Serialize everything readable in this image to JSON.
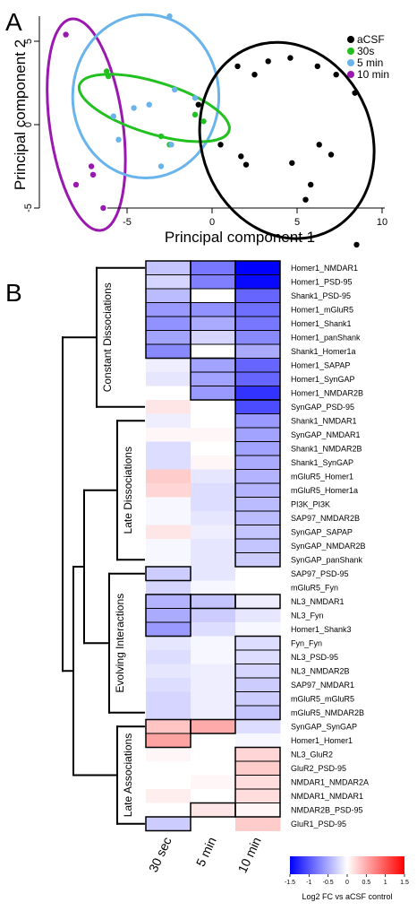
{
  "panel_a": {
    "letter": "A",
    "chart_data": {
      "type": "scatter",
      "xlabel": "Principal component 1",
      "ylabel": "Principal component 2",
      "xticks": [
        "-5",
        "0",
        "5",
        "10"
      ],
      "yticks": [
        "-5",
        "0",
        "5"
      ],
      "xlim": [
        -9,
        11
      ],
      "ylim": [
        -6.5,
        6.5
      ],
      "legend_position": "top-right",
      "series": [
        {
          "name": "aCSF",
          "color": "#000000",
          "points": [
            [
              1.5,
              3.5
            ],
            [
              2.5,
              3.0
            ],
            [
              3.3,
              3.8
            ],
            [
              4.6,
              4.0
            ],
            [
              6.2,
              3.5
            ],
            [
              7.3,
              3.0
            ],
            [
              8.4,
              1.9
            ],
            [
              -0.8,
              1.2
            ],
            [
              0.5,
              -1.2
            ],
            [
              1.7,
              -1.9
            ],
            [
              2.0,
              -2.4
            ],
            [
              4.7,
              -2.3
            ],
            [
              5.8,
              -3.6
            ],
            [
              6.3,
              -1.2
            ],
            [
              7.0,
              -1.8
            ],
            [
              5.5,
              -4.5
            ],
            [
              8.5,
              -7.2
            ]
          ]
        },
        {
          "name": "30s",
          "color": "#22c020",
          "points": [
            [
              -6.2,
              3.2
            ],
            [
              -6.1,
              2.9
            ],
            [
              -3.0,
              -0.7
            ],
            [
              -2.5,
              -1.2
            ],
            [
              -1.0,
              0.6
            ],
            [
              -0.5,
              0.2
            ]
          ]
        },
        {
          "name": "5 min",
          "color": "#6ab4ec",
          "points": [
            [
              -2.5,
              6.5
            ],
            [
              -5.8,
              0.5
            ],
            [
              -4.6,
              1.0
            ],
            [
              -3.7,
              1.2
            ],
            [
              -2.2,
              2.1
            ],
            [
              -5.5,
              -0.9
            ],
            [
              -2.4,
              -1.2
            ],
            [
              -3.0,
              -2.5
            ],
            [
              -1.0,
              1.6
            ]
          ]
        },
        {
          "name": "10 min",
          "color": "#9b18b0",
          "points": [
            [
              -8.6,
              5.4
            ],
            [
              -7.1,
              -2.5
            ],
            [
              -8.0,
              -3.6
            ],
            [
              -7.0,
              -3.0
            ],
            [
              -6.4,
              -5.0
            ]
          ]
        }
      ]
    }
  },
  "panel_b": {
    "letter": "B",
    "chart_data": {
      "type": "heatmap",
      "columns": [
        "30 sec",
        "5 min",
        "10 min"
      ],
      "rows": [
        "Homer1_NMDAR1",
        "Homer1_PSD-95",
        "Shank1_PSD-95",
        "Homer1_mGluR5",
        "Homer1_Shank1",
        "Homer1_panShank",
        "Shank1_Homer1a",
        "Homer1_SAPAP",
        "Homer1_SynGAP",
        "Homer1_NMDAR2B",
        "SynGAP_PSD-95",
        "Shank1_NMDAR1",
        "SynGAP_NMDAR1",
        "Shank1_NMDAR2B",
        "Shank1_SynGAP",
        "mGluR5_Homer1",
        "mGluR5_Homer1a",
        "PI3K_PI3K",
        "SAP97_NMDAR2B",
        "SynGAP_SAPAP",
        "SynGAP_NMDAR2B",
        "SynGAP_panShank",
        "SAP97_PSD-95",
        "mGluR5_Fyn",
        "NL3_NMDAR1",
        "NL3_Fyn",
        "Homer1_Shank3",
        "Fyn_Fyn",
        "NL3_PSD-95",
        "NL3_NMDAR2B",
        "SAP97_NMDAR1",
        "mGluR5_mGluR5",
        "mGluR5_NMDAR2B",
        "SynGAP_SynGAP",
        "Homer1_Homer1",
        "NL3_GluR2",
        "GluR2_PSD-95",
        "NMDAR1_NMDAR2A",
        "NMDAR1_NMDAR1",
        "NMDAR2B_PSD-95",
        "GluR1_PSD-95"
      ],
      "values": [
        [
          -0.35,
          -0.8,
          -1.5
        ],
        [
          -0.25,
          -0.75,
          -1.45
        ],
        [
          -0.4,
          0.0,
          -0.9
        ],
        [
          -0.6,
          -0.65,
          -0.85
        ],
        [
          -0.65,
          -0.5,
          -0.8
        ],
        [
          -0.55,
          -0.25,
          -0.7
        ],
        [
          -0.7,
          0.0,
          -0.5
        ],
        [
          -0.1,
          -0.55,
          -0.9
        ],
        [
          -0.15,
          -0.55,
          -0.9
        ],
        [
          0.0,
          -0.6,
          -1.2
        ],
        [
          0.15,
          0.0,
          -1.05
        ],
        [
          -0.1,
          0.0,
          -0.6
        ],
        [
          0.05,
          0.05,
          -0.55
        ],
        [
          -0.2,
          0.0,
          -0.55
        ],
        [
          -0.2,
          0.05,
          -0.5
        ],
        [
          0.3,
          -0.15,
          -0.45
        ],
        [
          0.25,
          -0.2,
          -0.45
        ],
        [
          -0.05,
          -0.2,
          -0.4
        ],
        [
          -0.05,
          -0.15,
          -0.4
        ],
        [
          0.15,
          -0.1,
          -0.35
        ],
        [
          -0.05,
          -0.15,
          -0.35
        ],
        [
          -0.05,
          -0.15,
          -0.3
        ],
        [
          -0.3,
          -0.15,
          0.0
        ],
        [
          -0.25,
          -0.05,
          0.0
        ],
        [
          -0.45,
          -0.35,
          -0.1
        ],
        [
          -0.5,
          -0.3,
          -0.15
        ],
        [
          -0.6,
          -0.2,
          -0.05
        ],
        [
          -0.15,
          -0.05,
          -0.2
        ],
        [
          -0.2,
          -0.05,
          -0.2
        ],
        [
          -0.15,
          -0.1,
          -0.25
        ],
        [
          -0.2,
          -0.1,
          -0.3
        ],
        [
          -0.25,
          -0.1,
          -0.3
        ],
        [
          -0.25,
          -0.1,
          -0.35
        ],
        [
          0.35,
          0.5,
          -0.2
        ],
        [
          0.55,
          0.0,
          -0.05
        ],
        [
          0.05,
          0.0,
          0.25
        ],
        [
          0.0,
          0.0,
          0.3
        ],
        [
          0.0,
          0.05,
          0.2
        ],
        [
          0.1,
          0.0,
          0.2
        ],
        [
          0.0,
          0.15,
          0.05
        ],
        [
          -0.3,
          0.0,
          0.3
        ]
      ],
      "boxes": [
        [
          0,
          0,
          7
        ],
        [
          1,
          0,
          7
        ],
        [
          2,
          0,
          10
        ],
        [
          1,
          7,
          3
        ],
        [
          2,
          10,
          12
        ],
        [
          0,
          22,
          1
        ],
        [
          0,
          24,
          3
        ],
        [
          1,
          24,
          1
        ],
        [
          2,
          24,
          1
        ],
        [
          2,
          27,
          6
        ],
        [
          0,
          33,
          2
        ],
        [
          1,
          33,
          1
        ],
        [
          2,
          35,
          5
        ],
        [
          1,
          39,
          1
        ],
        [
          0,
          40,
          1
        ]
      ],
      "row_groups": [
        "Constant Dissociations",
        "Late Dissociations",
        "Evolving Interactions",
        "Late Associations"
      ],
      "colorbar": {
        "min": -1.5,
        "max": 1.5,
        "ticks": [
          "-1.5",
          "-1",
          "-0.5",
          "0",
          "0.5",
          "1",
          "1.5"
        ],
        "title": "Log2 FC vs aCSF control",
        "low_color": "#0000ff",
        "mid_color": "#ffffff",
        "high_color": "#ff0000"
      }
    }
  }
}
